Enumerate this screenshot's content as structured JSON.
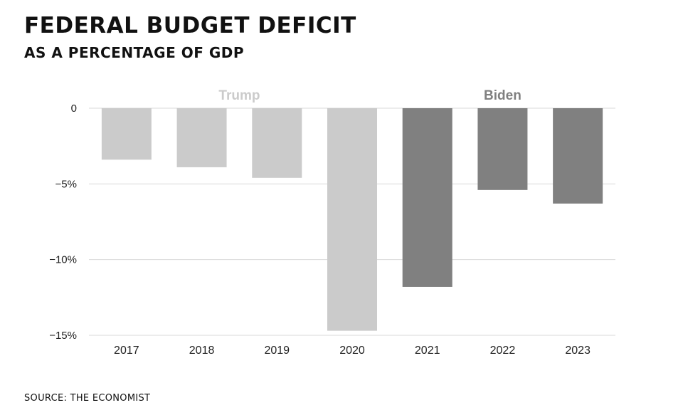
{
  "title": "FEDERAL BUDGET DEFICIT",
  "subtitle": "AS A PERCENTAGE OF GDP",
  "source": "SOURCE: THE ECONOMIST",
  "colors": {
    "trump": "#cbcbcb",
    "biden": "#808080",
    "grid": "#d9d9d9",
    "text": "#222222"
  },
  "chart_data": {
    "type": "bar",
    "categories": [
      "2017",
      "2018",
      "2019",
      "2020",
      "2021",
      "2022",
      "2023"
    ],
    "values": [
      -3.4,
      -3.9,
      -4.6,
      -14.7,
      -11.8,
      -5.4,
      -6.3
    ],
    "ylim": [
      -15,
      0
    ],
    "yticks": [
      0,
      -5,
      -10,
      -15
    ],
    "ytick_labels": [
      "0",
      "−5%",
      "−10%",
      "−15%"
    ],
    "xlabel": "",
    "ylabel": "",
    "grid": true,
    "groups": [
      {
        "label": "Trump",
        "categories": [
          "2017",
          "2018",
          "2019",
          "2020"
        ],
        "color": "#cbcbcb"
      },
      {
        "label": "Biden",
        "categories": [
          "2021",
          "2022",
          "2023"
        ],
        "color": "#808080"
      }
    ]
  }
}
